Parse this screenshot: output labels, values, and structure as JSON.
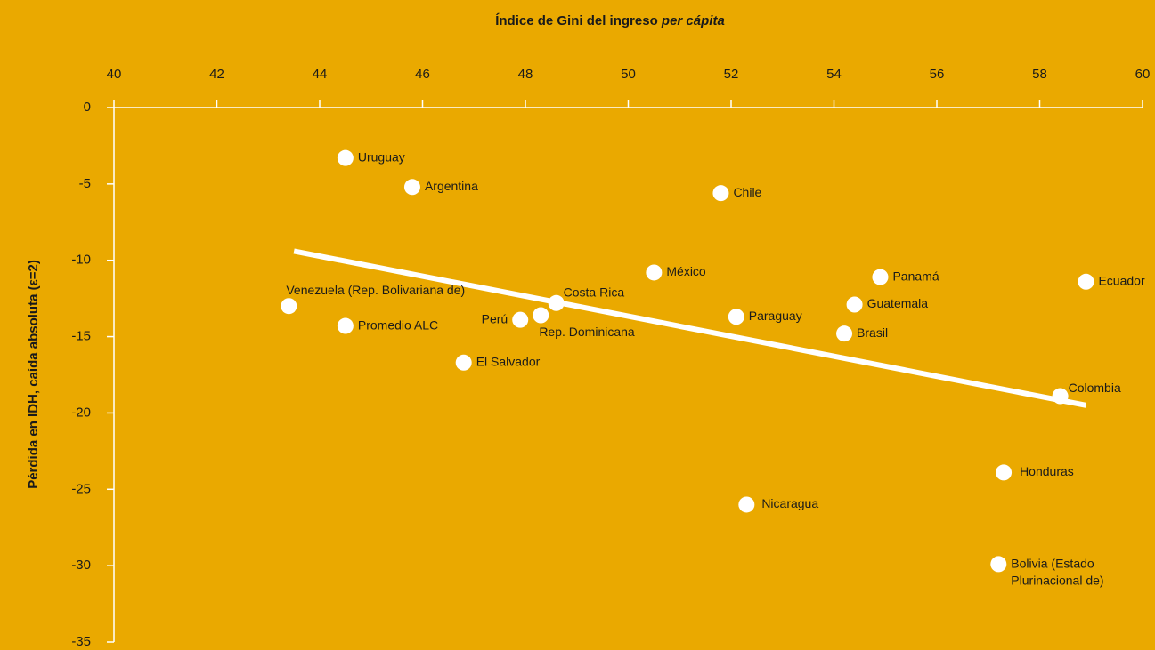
{
  "chart_data": {
    "type": "scatter",
    "xlabel": "Índice de Gini del ingreso",
    "xlabel_italic": "per cápita",
    "ylabel": "Pérdida en IDH, caída absoluta (ε=2)",
    "xlim": [
      40,
      60
    ],
    "xticks": [
      40,
      42,
      44,
      46,
      48,
      50,
      52,
      54,
      56,
      58,
      60
    ],
    "ylim": [
      -35,
      0
    ],
    "yticks": [
      0,
      -5,
      -10,
      -15,
      -20,
      -25,
      -30,
      -35
    ],
    "color": "#ffffff",
    "background": "#eaa900",
    "labels": [
      "Uruguay",
      "Argentina",
      "Chile",
      "México",
      "Panamá",
      "Ecuador",
      "Venezuela (Rep. Bolivariana de)",
      "Costa Rica",
      "Perú",
      "Rep. Dominicana",
      "Guatemala",
      "Paraguay",
      "Promedio ALC",
      "Brasil",
      "El Salvador",
      "Colombia",
      "Honduras",
      "Nicaragua",
      "Bolivia (Estado Plurinacional de)"
    ],
    "x": [
      44.5,
      45.8,
      51.8,
      50.5,
      54.9,
      58.9,
      43.4,
      48.6,
      47.9,
      48.3,
      54.4,
      52.1,
      44.5,
      54.2,
      46.8,
      58.4,
      57.3,
      52.3,
      57.2
    ],
    "values": [
      -3.3,
      -5.2,
      -5.6,
      -10.8,
      -11.1,
      -11.4,
      -13.0,
      -12.8,
      -13.9,
      -13.6,
      -12.9,
      -13.7,
      -14.3,
      -14.8,
      -16.7,
      -18.9,
      -23.9,
      -26.0,
      -29.9
    ],
    "trendline": {
      "x": [
        43.5,
        58.9
      ],
      "y": [
        -9.4,
        -19.5
      ]
    }
  }
}
